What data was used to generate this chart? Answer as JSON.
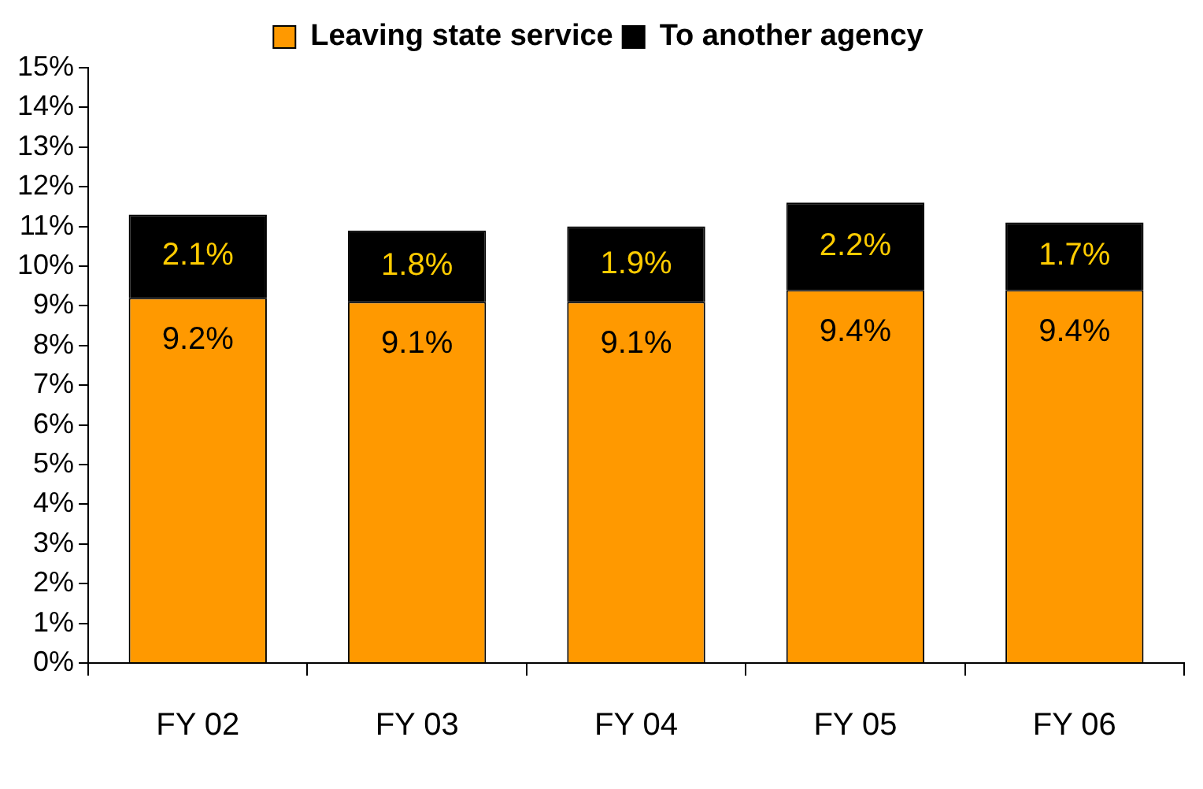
{
  "chart_data": {
    "type": "bar",
    "stacked": true,
    "categories": [
      "FY 02",
      "FY 03",
      "FY 04",
      "FY 05",
      "FY 06"
    ],
    "series": [
      {
        "name": "Leaving state service",
        "color": "#ff9900",
        "values": [
          9.2,
          9.1,
          9.1,
          9.4,
          9.4
        ],
        "value_labels": [
          "9.2%",
          "9.1%",
          "9.1%",
          "9.4%",
          "9.4%"
        ]
      },
      {
        "name": "To another agency",
        "color": "#000000",
        "values": [
          2.1,
          1.8,
          1.9,
          2.2,
          1.7
        ],
        "value_labels": [
          "2.1%",
          "1.8%",
          "1.9%",
          "2.2%",
          "1.7%"
        ]
      }
    ],
    "ylim": [
      0,
      15
    ],
    "yticks": [
      {
        "value": 0,
        "label": "0%"
      },
      {
        "value": 1,
        "label": "1%"
      },
      {
        "value": 2,
        "label": "2%"
      },
      {
        "value": 3,
        "label": "3%"
      },
      {
        "value": 4,
        "label": "4%"
      },
      {
        "value": 5,
        "label": "5%"
      },
      {
        "value": 6,
        "label": "6%"
      },
      {
        "value": 7,
        "label": "7%"
      },
      {
        "value": 8,
        "label": "8%"
      },
      {
        "value": 9,
        "label": "9%"
      },
      {
        "value": 10,
        "label": "10%"
      },
      {
        "value": 11,
        "label": "11%"
      },
      {
        "value": 12,
        "label": "12%"
      },
      {
        "value": 13,
        "label": "13%"
      },
      {
        "value": 14,
        "label": "14%"
      },
      {
        "value": 15,
        "label": "15%"
      }
    ],
    "grid": false,
    "legend": "top"
  }
}
